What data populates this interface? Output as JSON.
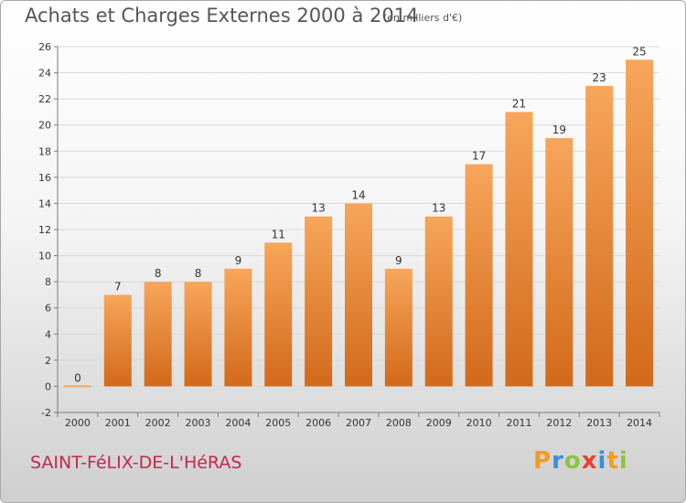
{
  "header": {
    "title": "Achats et Charges Externes 2000 à 2014",
    "subtitle": "(en milliers d'€)"
  },
  "footer": {
    "place": "SAINT-FéLIX-DE-L'HéRAS",
    "logo": {
      "letters": [
        "P",
        "r",
        "o",
        "x",
        "i",
        "t",
        "i"
      ],
      "colors": [
        "#f39c1e",
        "#3a8fd6",
        "#8bc53f",
        "#e8412c",
        "#3a8fd6",
        "#f39c1e",
        "#8bc53f"
      ]
    }
  },
  "colors": {
    "bar_top": "#f7a65a",
    "bar_bottom": "#d2691a",
    "grid": "#d9d9d9",
    "axis": "#7a7a7a",
    "label": "#333333"
  },
  "chart_data": {
    "type": "bar",
    "categories": [
      "2000",
      "2001",
      "2002",
      "2003",
      "2004",
      "2005",
      "2006",
      "2007",
      "2008",
      "2009",
      "2010",
      "2011",
      "2012",
      "2013",
      "2014"
    ],
    "values": [
      0,
      7,
      8,
      8,
      9,
      11,
      13,
      14,
      9,
      13,
      17,
      21,
      19,
      23,
      25
    ],
    "data_labels": [
      "0",
      "7",
      "8",
      "8",
      "9",
      "11",
      "13",
      "14",
      "9",
      "13",
      "17",
      "21",
      "19",
      "23",
      "25"
    ],
    "ylim": [
      -2,
      26
    ],
    "yticks": [
      -2,
      0,
      2,
      4,
      6,
      8,
      10,
      12,
      14,
      16,
      18,
      20,
      22,
      24,
      26
    ],
    "grid": true,
    "legend": "none",
    "title": "Achats et Charges Externes 2000 à 2014",
    "xlabel": "",
    "ylabel": ""
  }
}
